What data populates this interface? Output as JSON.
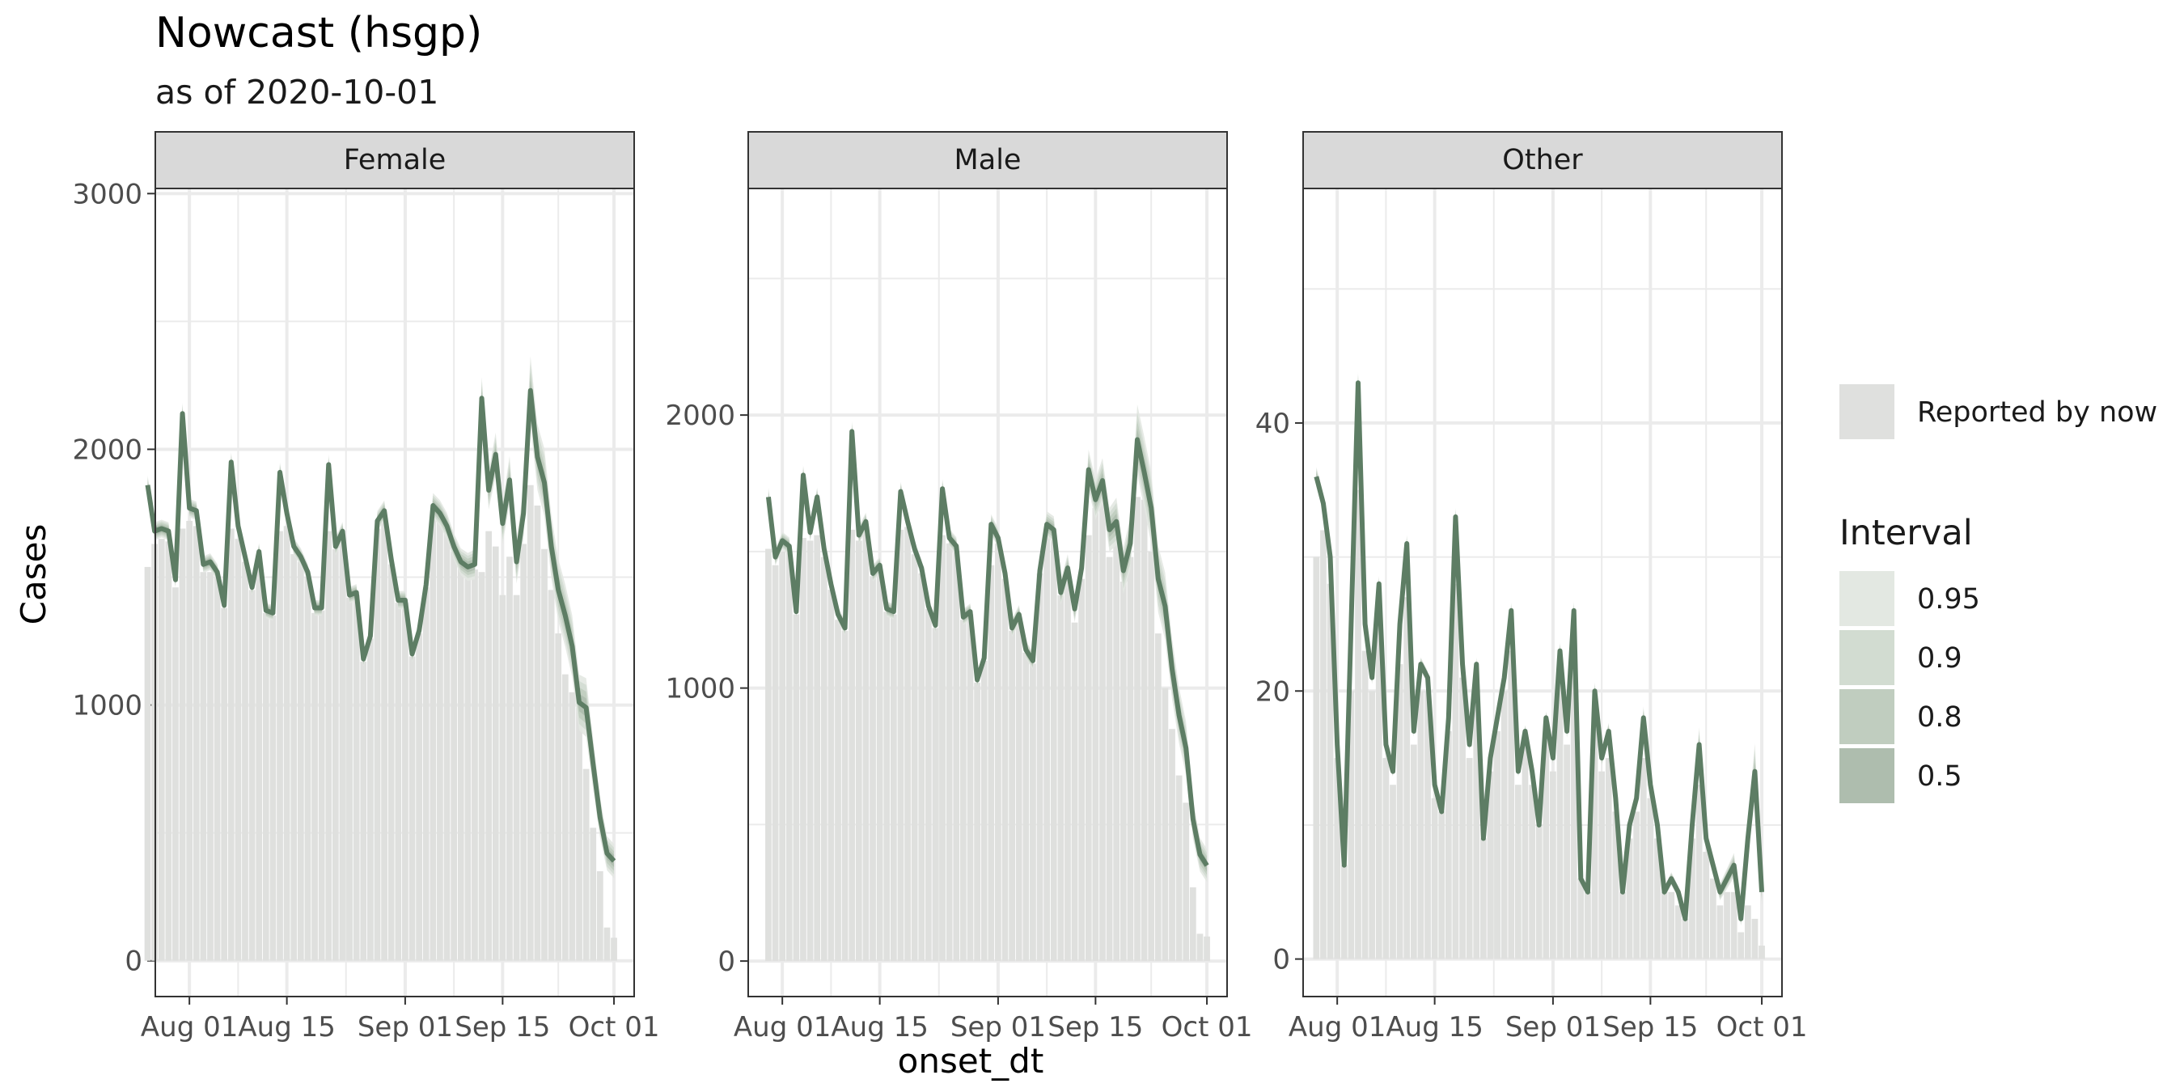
{
  "chart_data": {
    "type": "bar",
    "title": "Nowcast (hsgp)",
    "subtitle": "as of 2020-10-01",
    "xlabel": "onset_dt",
    "ylabel": "Cases",
    "x_ticks": [
      "Aug 01",
      "Aug 15",
      "Sep 01",
      "Sep 15",
      "Oct 01"
    ],
    "x_start": "Jul 29",
    "x_end": "Oct 01",
    "grid": true,
    "legend_position": "right",
    "colors": {
      "bar": "#dfe0de",
      "line": "#5d7d64",
      "interval_095": "#e3e8e2",
      "interval_09": "#d2dcd1",
      "interval_08": "#c0cdbf",
      "interval_05": "#aebdae",
      "strip": "#d9d9d9",
      "grid": "#ebebeb"
    },
    "legend": {
      "bar_label": "Reported by now",
      "interval_title": "Interval",
      "interval_levels": [
        "0.95",
        "0.9",
        "0.8",
        "0.5"
      ]
    },
    "panels": [
      {
        "name": "Female",
        "ylim": [
          -140,
          3020
        ],
        "y_ticks": [
          0,
          1000,
          2000,
          3000
        ],
        "nowcast": [
          1860,
          1680,
          1690,
          1680,
          1490,
          2140,
          1770,
          1760,
          1550,
          1560,
          1520,
          1390,
          1950,
          1700,
          1580,
          1460,
          1600,
          1370,
          1360,
          1910,
          1750,
          1620,
          1580,
          1520,
          1380,
          1380,
          1940,
          1620,
          1680,
          1430,
          1440,
          1180,
          1270,
          1720,
          1760,
          1570,
          1410,
          1410,
          1200,
          1290,
          1470,
          1780,
          1750,
          1700,
          1620,
          1560,
          1540,
          1550,
          2200,
          1840,
          1980,
          1710,
          1880,
          1560,
          1750,
          2230,
          1970,
          1870,
          1620,
          1450,
          1350,
          1230,
          1010,
          990,
          770,
          560,
          420,
          390
        ],
        "reported": [
          1540,
          1630,
          1650,
          1640,
          1460,
          1690,
          1720,
          1700,
          1520,
          1520,
          1500,
          1380,
          1690,
          1650,
          1560,
          1450,
          1580,
          1360,
          1350,
          1680,
          1700,
          1590,
          1560,
          1500,
          1360,
          1370,
          1680,
          1610,
          1650,
          1420,
          1430,
          1170,
          1260,
          1690,
          1730,
          1550,
          1400,
          1400,
          1190,
          1280,
          1460,
          1740,
          1730,
          1680,
          1600,
          1550,
          1530,
          1530,
          1520,
          1680,
          1620,
          1430,
          1580,
          1430,
          1630,
          1860,
          1780,
          1610,
          1450,
          1280,
          1120,
          1050,
          990,
          750,
          520,
          350,
          130,
          90
        ]
      },
      {
        "name": "Male",
        "ylim": [
          -130,
          2830
        ],
        "y_ticks": [
          0,
          1000,
          2000
        ],
        "nowcast": [
          1700,
          1480,
          1540,
          1520,
          1280,
          1780,
          1570,
          1700,
          1510,
          1380,
          1270,
          1220,
          1940,
          1560,
          1610,
          1420,
          1450,
          1290,
          1280,
          1720,
          1610,
          1510,
          1440,
          1300,
          1230,
          1730,
          1550,
          1520,
          1260,
          1280,
          1030,
          1110,
          1600,
          1550,
          1420,
          1220,
          1270,
          1140,
          1100,
          1430,
          1600,
          1580,
          1350,
          1440,
          1290,
          1440,
          1800,
          1690,
          1760,
          1580,
          1610,
          1430,
          1530,
          1910,
          1790,
          1660,
          1400,
          1300,
          1070,
          900,
          780,
          520,
          390,
          350
        ],
        "reported": [
          1510,
          1450,
          1500,
          1500,
          1270,
          1550,
          1540,
          1560,
          1480,
          1360,
          1250,
          1210,
          1580,
          1540,
          1590,
          1410,
          1430,
          1280,
          1270,
          1580,
          1590,
          1490,
          1420,
          1290,
          1220,
          1560,
          1530,
          1500,
          1250,
          1270,
          1020,
          1100,
          1450,
          1530,
          1400,
          1210,
          1260,
          1130,
          1090,
          1420,
          1560,
          1560,
          1340,
          1420,
          1240,
          1400,
          1560,
          1660,
          1720,
          1480,
          1540,
          1390,
          1480,
          1700,
          1690,
          1500,
          1200,
          1000,
          850,
          680,
          580,
          270,
          100,
          90
        ]
      },
      {
        "name": "Other",
        "ylim": [
          -2.8,
          57.5
        ],
        "y_ticks": [
          0,
          20,
          40
        ],
        "nowcast": [
          36,
          34,
          30,
          16,
          7,
          25,
          43,
          25,
          21,
          28,
          16,
          14,
          25,
          31,
          17,
          22,
          21,
          13,
          11,
          18,
          33,
          22,
          16,
          22,
          9,
          15,
          18,
          21,
          26,
          14,
          17,
          14,
          10,
          18,
          15,
          23,
          17,
          26,
          6,
          5,
          20,
          15,
          17,
          12,
          5,
          10,
          12,
          18,
          13,
          10,
          5,
          6,
          5,
          3,
          10,
          16,
          9,
          7,
          5,
          6,
          7,
          3,
          9,
          14,
          5
        ],
        "reported": [
          30,
          32,
          28,
          15,
          7,
          20,
          35,
          23,
          20,
          26,
          15,
          13,
          22,
          27,
          16,
          20,
          20,
          12,
          11,
          17,
          28,
          21,
          15,
          20,
          9,
          14,
          17,
          20,
          23,
          13,
          16,
          13,
          10,
          17,
          14,
          21,
          16,
          22,
          6,
          5,
          18,
          14,
          15,
          11,
          5,
          9,
          11,
          15,
          12,
          9,
          5,
          5,
          4,
          3,
          9,
          13,
          8,
          6,
          4,
          5,
          5,
          2,
          4,
          3,
          1
        ]
      }
    ]
  }
}
